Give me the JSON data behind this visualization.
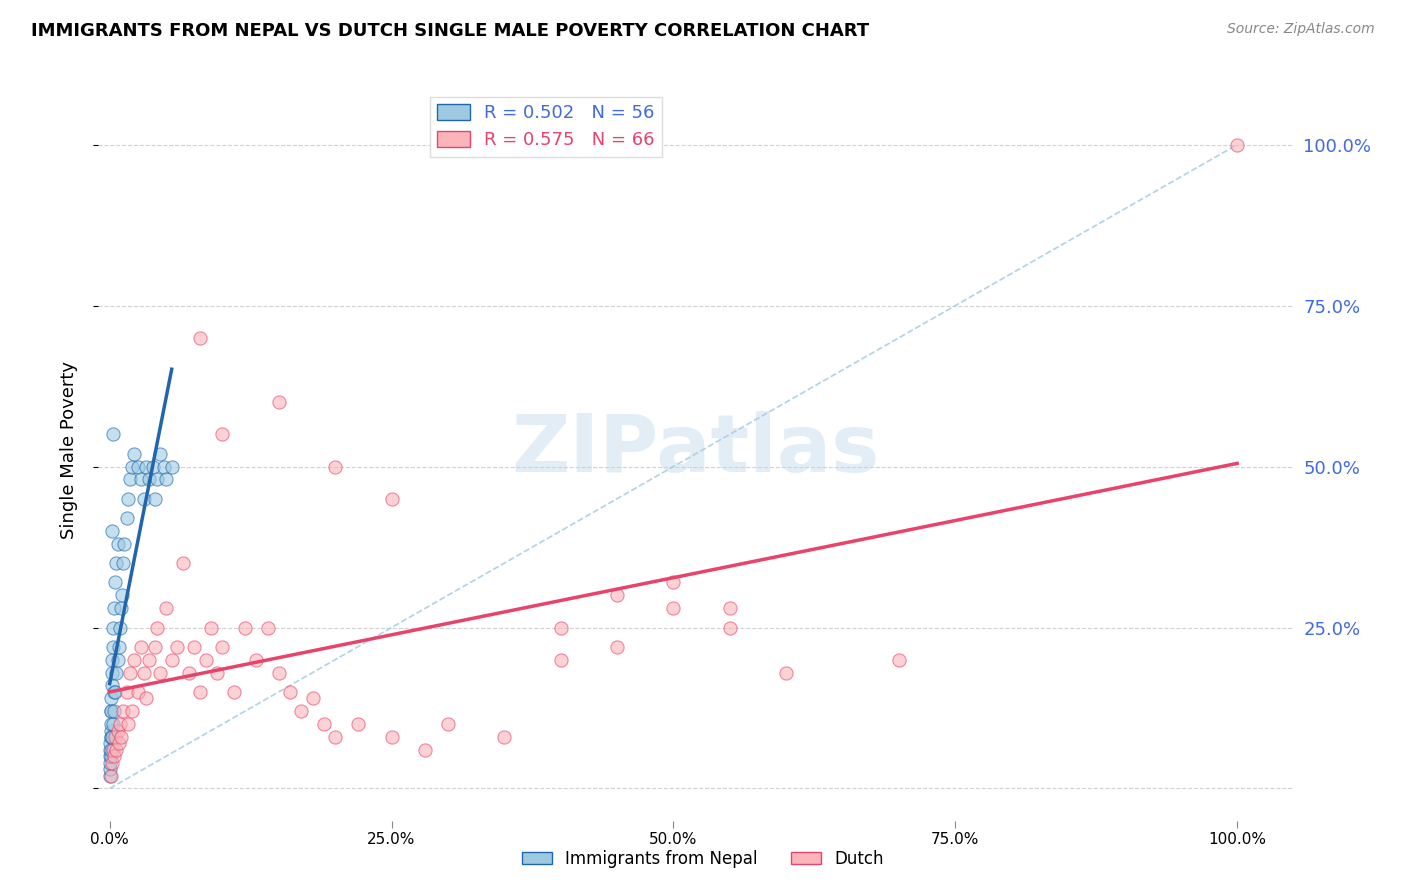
{
  "title": "IMMIGRANTS FROM NEPAL VS DUTCH SINGLE MALE POVERTY CORRELATION CHART",
  "source": "Source: ZipAtlas.com",
  "ylabel": "Single Male Poverty",
  "legend_label1": "Immigrants from Nepal",
  "legend_label2": "Dutch",
  "R1": 0.502,
  "N1": 56,
  "R2": 0.575,
  "N2": 66,
  "color_blue": "#9ecae1",
  "color_pink": "#fbb4b9",
  "color_blue_line": "#2166ac",
  "color_pink_line": "#e8436a",
  "color_axis_labels": "#4169E1",
  "watermark": "ZIPatlas",
  "blue_points_x": [
    0.0002,
    0.0003,
    0.0004,
    0.0005,
    0.0006,
    0.0007,
    0.0008,
    0.0009,
    0.001,
    0.001,
    0.0012,
    0.0013,
    0.0014,
    0.0015,
    0.0016,
    0.0018,
    0.002,
    0.002,
    0.0022,
    0.0025,
    0.003,
    0.003,
    0.0035,
    0.004,
    0.004,
    0.005,
    0.005,
    0.006,
    0.006,
    0.007,
    0.007,
    0.008,
    0.009,
    0.01,
    0.011,
    0.012,
    0.013,
    0.015,
    0.016,
    0.018,
    0.02,
    0.022,
    0.025,
    0.028,
    0.03,
    0.032,
    0.035,
    0.038,
    0.04,
    0.042,
    0.045,
    0.048,
    0.05,
    0.055,
    0.002,
    0.003
  ],
  "blue_points_y": [
    0.02,
    0.03,
    0.04,
    0.05,
    0.06,
    0.07,
    0.08,
    0.09,
    0.05,
    0.12,
    0.06,
    0.08,
    0.1,
    0.12,
    0.14,
    0.16,
    0.08,
    0.18,
    0.2,
    0.22,
    0.1,
    0.25,
    0.15,
    0.12,
    0.28,
    0.15,
    0.32,
    0.18,
    0.35,
    0.2,
    0.38,
    0.22,
    0.25,
    0.28,
    0.3,
    0.35,
    0.38,
    0.42,
    0.45,
    0.48,
    0.5,
    0.52,
    0.5,
    0.48,
    0.45,
    0.5,
    0.48,
    0.5,
    0.45,
    0.48,
    0.52,
    0.5,
    0.48,
    0.5,
    0.4,
    0.55
  ],
  "pink_points_x": [
    0.001,
    0.002,
    0.003,
    0.004,
    0.005,
    0.006,
    0.007,
    0.008,
    0.009,
    0.01,
    0.012,
    0.015,
    0.016,
    0.018,
    0.02,
    0.022,
    0.025,
    0.028,
    0.03,
    0.032,
    0.035,
    0.04,
    0.042,
    0.045,
    0.05,
    0.055,
    0.06,
    0.065,
    0.07,
    0.075,
    0.08,
    0.085,
    0.09,
    0.095,
    0.1,
    0.11,
    0.12,
    0.13,
    0.14,
    0.15,
    0.16,
    0.17,
    0.18,
    0.19,
    0.2,
    0.22,
    0.25,
    0.28,
    0.3,
    0.35,
    0.4,
    0.45,
    0.5,
    0.55,
    0.6,
    0.7,
    0.45,
    0.5,
    0.55,
    0.4,
    0.2,
    0.25,
    0.15,
    0.1,
    0.08,
    1.0
  ],
  "pink_points_y": [
    0.02,
    0.04,
    0.06,
    0.05,
    0.08,
    0.06,
    0.09,
    0.07,
    0.1,
    0.08,
    0.12,
    0.15,
    0.1,
    0.18,
    0.12,
    0.2,
    0.15,
    0.22,
    0.18,
    0.14,
    0.2,
    0.22,
    0.25,
    0.18,
    0.28,
    0.2,
    0.22,
    0.35,
    0.18,
    0.22,
    0.15,
    0.2,
    0.25,
    0.18,
    0.22,
    0.15,
    0.25,
    0.2,
    0.25,
    0.18,
    0.15,
    0.12,
    0.14,
    0.1,
    0.08,
    0.1,
    0.08,
    0.06,
    0.1,
    0.08,
    0.25,
    0.22,
    0.28,
    0.25,
    0.18,
    0.2,
    0.3,
    0.32,
    0.28,
    0.2,
    0.5,
    0.45,
    0.6,
    0.55,
    0.7,
    1.0
  ],
  "ytick_labels_right": [
    "25.0%",
    "50.0%",
    "75.0%",
    "100.0%"
  ],
  "xtick_labels": [
    "0.0%",
    "25.0%",
    "50.0%",
    "75.0%",
    "100.0%"
  ]
}
